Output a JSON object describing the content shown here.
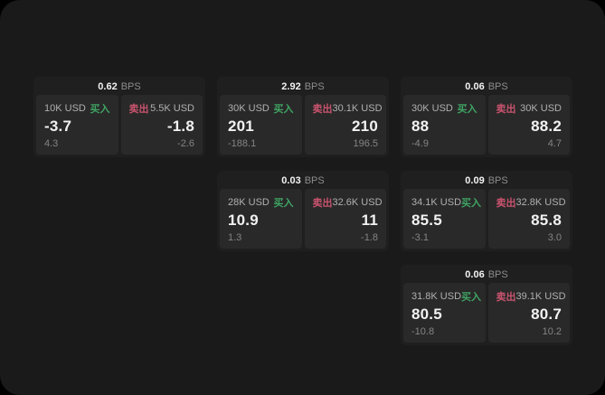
{
  "labels": {
    "bps_unit": "BPS",
    "buy": "买入",
    "sell": "卖出"
  },
  "colors": {
    "outside": "#000000",
    "surface": "#1a1a1a",
    "card": "#1f1f1f",
    "panel": "#292929",
    "buy": "#3fa463",
    "sell": "#c9536e",
    "value_text": "#f2f2f2",
    "label_text": "#b0b0b0",
    "muted_text": "#848484",
    "unit_text": "#8c8c8c"
  },
  "cards": [
    {
      "bps": "0.62",
      "buy": {
        "amount": "10K USD",
        "value": "-3.7",
        "change": "4.3"
      },
      "sell": {
        "amount": "5.5K USD",
        "value": "-1.8",
        "change": "-2.6"
      }
    },
    {
      "bps": "2.92",
      "buy": {
        "amount": "30K USD",
        "value": "201",
        "change": "-188.1"
      },
      "sell": {
        "amount": "30.1K USD",
        "value": "210",
        "change": "196.5"
      }
    },
    {
      "bps": "0.06",
      "buy": {
        "amount": "30K USD",
        "value": "88",
        "change": "-4.9"
      },
      "sell": {
        "amount": "30K USD",
        "value": "88.2",
        "change": "4.7"
      }
    },
    {
      "bps": "0.03",
      "buy": {
        "amount": "28K USD",
        "value": "10.9",
        "change": "1.3"
      },
      "sell": {
        "amount": "32.6K USD",
        "value": "11",
        "change": "-1.8"
      }
    },
    {
      "bps": "0.09",
      "buy": {
        "amount": "34.1K USD",
        "value": "85.5",
        "change": "-3.1"
      },
      "sell": {
        "amount": "32.8K USD",
        "value": "85.8",
        "change": "3.0"
      }
    },
    {
      "bps": "0.06",
      "buy": {
        "amount": "31.8K USD",
        "value": "80.5",
        "change": "-10.8"
      },
      "sell": {
        "amount": "39.1K USD",
        "value": "80.7",
        "change": "10.2"
      }
    }
  ]
}
